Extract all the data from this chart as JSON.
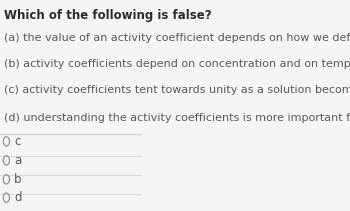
{
  "title": "Which of the following is false?",
  "lines": [
    "(a) the value of an activity coefficient depends on how we define the concentration",
    "(b) activity coefficients depend on concentration and on temperature",
    "(c) activity coefficients tent towards unity as a solution becomes more concentrated",
    "(d) understanding the activity coefficients is more important for ionic solutions."
  ],
  "options": [
    "c",
    "a",
    "b",
    "d"
  ],
  "bg_color": "#f5f5f5",
  "text_color": "#5a5a5a",
  "title_color": "#2c2c2c",
  "divider_color": "#d0d0d0",
  "circle_color": "#888888",
  "font_size_title": 8.5,
  "font_size_body": 8.0,
  "font_size_option": 8.5
}
